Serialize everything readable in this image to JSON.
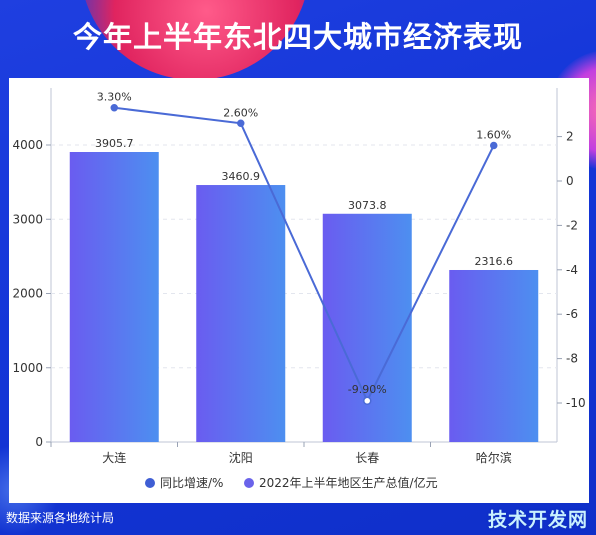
{
  "title": "今年上半年东北四大城市经济表现",
  "source": "数据来源各地统计局",
  "watermark": "技术开发网",
  "colors": {
    "bar_start": "#6a5cf0",
    "bar_end": "#4d8ff0",
    "line": "#4a6ad6",
    "legend_line_dot": "#3f5ed4",
    "legend_bar_dot": "#6a63ea"
  },
  "chart_data": {
    "type": "bar",
    "categories": [
      "大连",
      "沈阳",
      "长春",
      "哈尔滨"
    ],
    "series": [
      {
        "name": "2022年上半年地区生产总值/亿元",
        "type": "bar",
        "axis": "left",
        "values": [
          3905.7,
          3460.9,
          3073.8,
          2316.6
        ],
        "labels": [
          "3905.7",
          "3460.9",
          "3073.8",
          "2316.6"
        ]
      },
      {
        "name": "同比增速/%",
        "type": "line",
        "axis": "right",
        "values": [
          3.3,
          2.6,
          -9.9,
          1.6
        ],
        "labels": [
          "3.30%",
          "2.60%",
          "-9.90%",
          "1.60%"
        ]
      }
    ],
    "y_left": {
      "min": 0,
      "max": 4000,
      "ticks": [
        "0",
        "1000",
        "2000",
        "3000",
        "4000"
      ]
    },
    "y_right": {
      "min": -11,
      "max": 2,
      "ticks": [
        "-10",
        "-8",
        "-6",
        "-4",
        "-2",
        "0",
        "2"
      ]
    },
    "legend": [
      "同比增速/%",
      "2022年上半年地区生产总值/亿元"
    ],
    "legend_position": "bottom",
    "grid": true
  }
}
